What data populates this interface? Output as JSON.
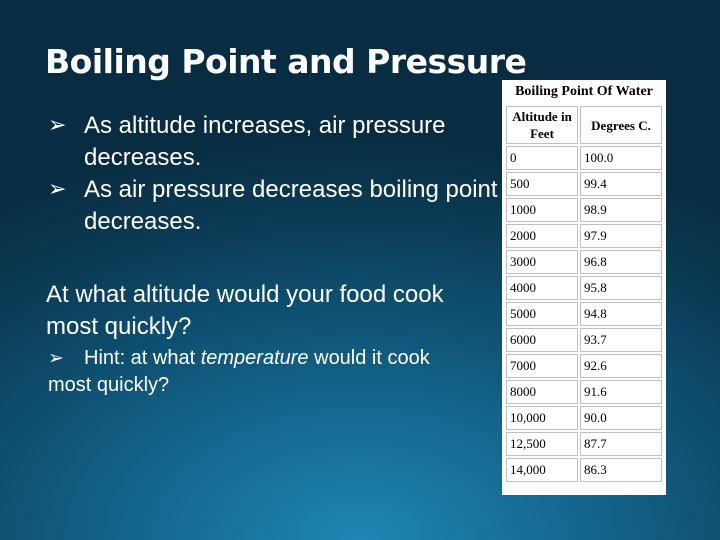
{
  "slide": {
    "title": "Boiling Point and Pressure",
    "bullets": [
      "As altitude increases, air pressure decreases.",
      "As air pressure decreases boiling point decreases."
    ],
    "question": "At what altitude would your food cook most quickly?",
    "hint": {
      "before": "Hint: at what ",
      "emphasis": "temperature",
      "after": " would it cook",
      "last_line": "most quickly?"
    },
    "bullet_icon": "arrow-bullet-icon"
  },
  "table": {
    "caption": "Boiling Point Of Water",
    "headers": [
      "Altitude in Feet",
      "Degrees C."
    ],
    "rows": [
      [
        "0",
        "100.0"
      ],
      [
        "500",
        "99.4"
      ],
      [
        "1000",
        "98.9"
      ],
      [
        "2000",
        "97.9"
      ],
      [
        "3000",
        "96.8"
      ],
      [
        "4000",
        "95.8"
      ],
      [
        "5000",
        "94.8"
      ],
      [
        "6000",
        "93.7"
      ],
      [
        "7000",
        "92.6"
      ],
      [
        "8000",
        "91.6"
      ],
      [
        "10,000",
        "90.0"
      ],
      [
        "12,500",
        "87.7"
      ],
      [
        "14,000",
        "86.3"
      ]
    ]
  }
}
